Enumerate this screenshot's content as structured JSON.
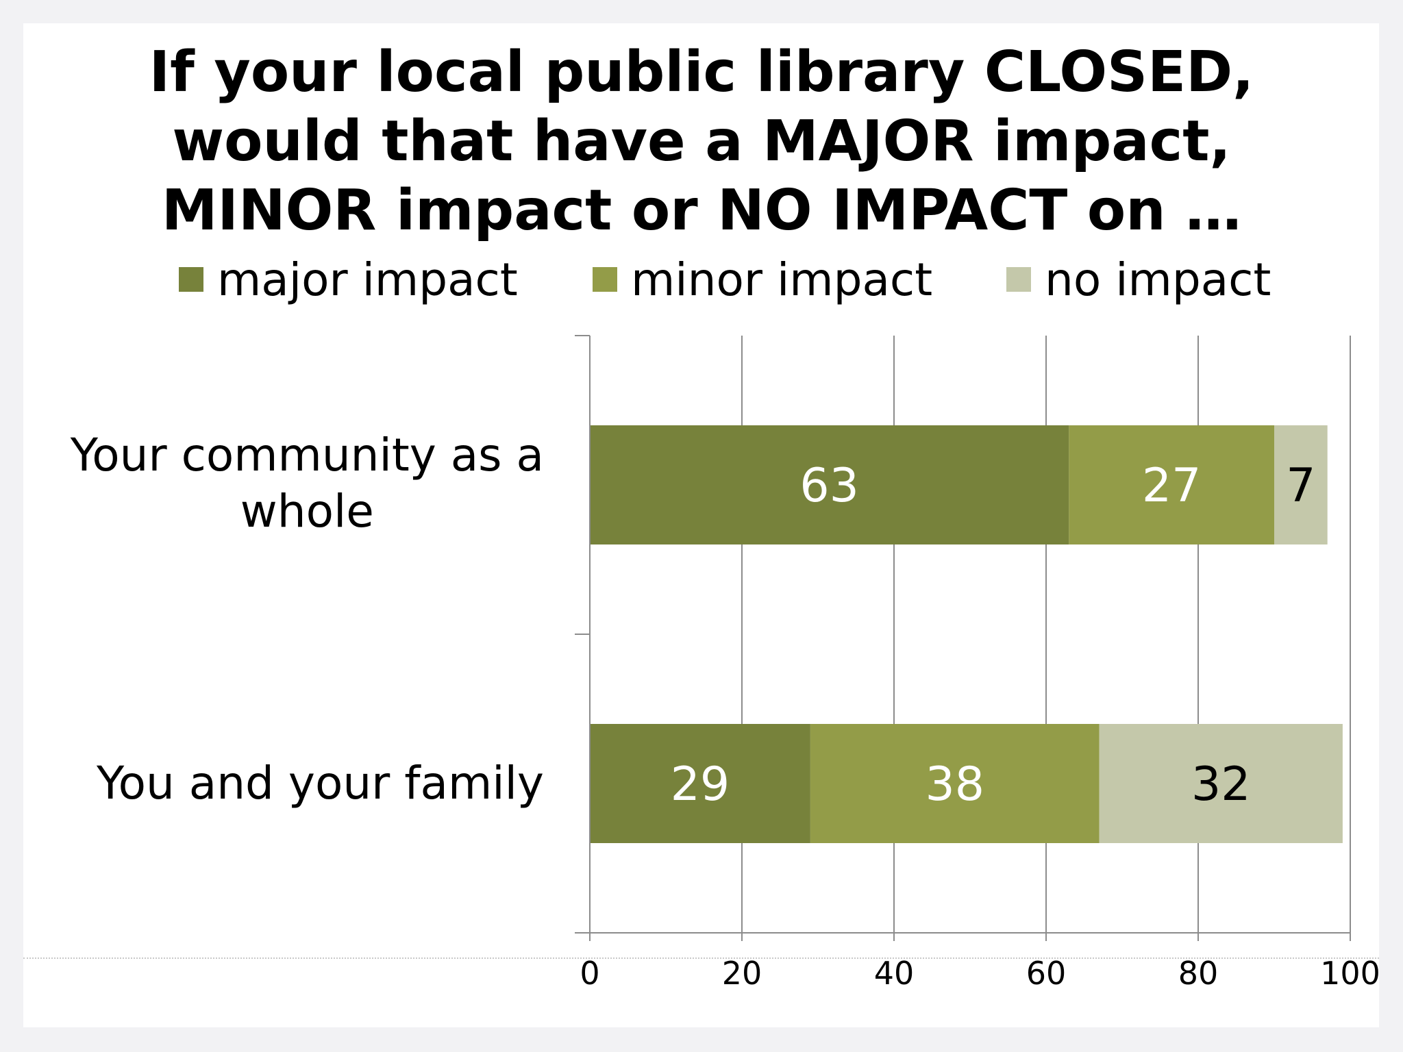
{
  "chart_data": {
    "type": "bar",
    "orientation": "horizontal",
    "stacked": true,
    "title_lines": [
      "If your local public library CLOSED,",
      "would that have a MAJOR impact,",
      "MINOR impact or NO IMPACT on …"
    ],
    "categories": [
      "Your community as a whole",
      "You and your family"
    ],
    "category_label_lines": [
      [
        "Your community as a",
        "whole"
      ],
      [
        "You and your family"
      ]
    ],
    "series": [
      {
        "name": "major impact",
        "color": "#77823b",
        "label_color": "#ffffff",
        "values": [
          63,
          29
        ]
      },
      {
        "name": "minor impact",
        "color": "#939c48",
        "label_color": "#ffffff",
        "values": [
          27,
          38
        ]
      },
      {
        "name": "no impact",
        "color": "#c4c8aa",
        "label_color": "#000000",
        "values": [
          7,
          32
        ]
      }
    ],
    "xlim": [
      0,
      100
    ],
    "xticks": [
      "0",
      "20",
      "40",
      "60",
      "80",
      "100"
    ],
    "grid": true,
    "legend_position": "top"
  }
}
